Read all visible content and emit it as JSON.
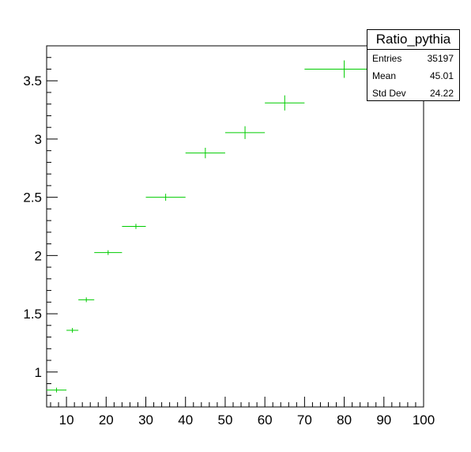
{
  "chart_data": {
    "type": "scatter",
    "series": [
      {
        "x": [
          7.5,
          11.5,
          15,
          20.5,
          27.5,
          35,
          45,
          55,
          65,
          80
        ],
        "x_low": [
          5,
          10,
          13,
          17,
          24,
          30,
          40,
          50,
          60,
          70
        ],
        "x_high": [
          10,
          13,
          17,
          24,
          30,
          40,
          50,
          60,
          70,
          90
        ],
        "y": [
          0.845,
          1.358,
          1.62,
          2.025,
          2.25,
          2.5,
          2.88,
          3.055,
          3.31,
          3.6
        ],
        "y_err": [
          0.005,
          0.01,
          0.015,
          0.018,
          0.022,
          0.03,
          0.045,
          0.055,
          0.065,
          0.075
        ]
      }
    ],
    "xlim": [
      5,
      100
    ],
    "ylim": [
      0.7,
      3.8
    ],
    "x_ticks": [
      10,
      20,
      30,
      40,
      50,
      60,
      70,
      80,
      90,
      100
    ],
    "y_ticks": [
      1,
      1.5,
      2,
      2.5,
      3,
      3.5
    ],
    "x_tick_labels": [
      "10",
      "20",
      "30",
      "40",
      "50",
      "60",
      "70",
      "80",
      "90",
      "100"
    ],
    "y_tick_labels": [
      "1",
      "1.5",
      "2",
      "2.5",
      "3",
      "3.5"
    ],
    "marker_color": "#00cc00",
    "grid": false
  },
  "stats": {
    "title": "Ratio_pythia",
    "rows": [
      {
        "label": "Entries",
        "value": "35197"
      },
      {
        "label": "Mean",
        "value": "45.01"
      },
      {
        "label": "Std Dev",
        "value": "24.22"
      }
    ]
  }
}
